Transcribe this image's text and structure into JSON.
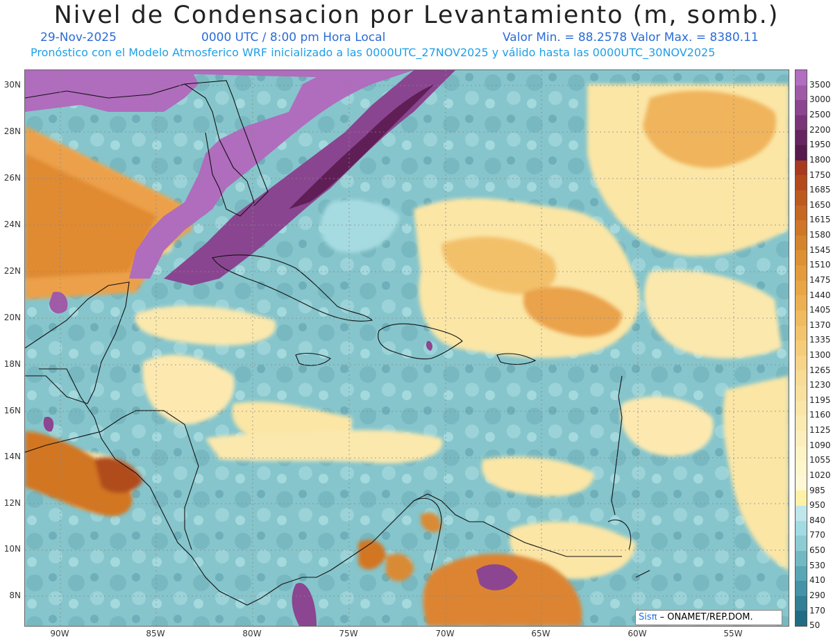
{
  "header": {
    "title": "Nivel de Condensacion por Levantamiento (m, somb.)",
    "date": "29-Nov-2025",
    "time": "0000 UTC / 8:00 pm Hora Local",
    "value_range": "Valor Min. = 88.2578   Valor Max. = 8380.11",
    "model_info": "Pronóstico con el Modelo Atmosferico WRF inicializado a las 0000UTC_27NOV2025 y válido hasta las  0000UTC_30NOV2025"
  },
  "axes": {
    "lat_labels": [
      "30N",
      "28N",
      "26N",
      "24N",
      "22N",
      "20N",
      "18N",
      "16N",
      "14N",
      "12N",
      "10N",
      "8N"
    ],
    "lon_labels": [
      "90W",
      "85W",
      "80W",
      "75W",
      "70W",
      "65W",
      "60W",
      "55W"
    ]
  },
  "colorbar": {
    "labels": [
      "3500",
      "3000",
      "2500",
      "2200",
      "1950",
      "1800",
      "1750",
      "1685",
      "1650",
      "1615",
      "1580",
      "1545",
      "1510",
      "1475",
      "1440",
      "1405",
      "1370",
      "1335",
      "1300",
      "1265",
      "1230",
      "1195",
      "1160",
      "1125",
      "1090",
      "1055",
      "1020",
      "985",
      "950",
      "840",
      "770",
      "650",
      "530",
      "410",
      "290",
      "170",
      "50"
    ],
    "colors": [
      "#b26ec0",
      "#a05aa8",
      "#8c4590",
      "#7a3478",
      "#662460",
      "#561a4c",
      "#a83a1e",
      "#b44a1c",
      "#bd5a20",
      "#c66824",
      "#cf7628",
      "#d6832e",
      "#de9034",
      "#e49b3c",
      "#e8a646",
      "#ecb052",
      "#f0ba5e",
      "#f3c46c",
      "#f5cd7a",
      "#f7d488",
      "#f8db94",
      "#f9e09e",
      "#fae6a8",
      "#fbebb2",
      "#fcefbb",
      "#fdf3c4",
      "#fef6cd",
      "#fff8d6",
      "#fdf2a6",
      "#bfe6ea",
      "#a2dbe2",
      "#8dccd3",
      "#73b9c4",
      "#5aa6b5",
      "#4493a6",
      "#337f95",
      "#226b84"
    ]
  },
  "credit": {
    "brand": "Sisπ",
    "text": " –  ONAMET/REP.DOM."
  }
}
